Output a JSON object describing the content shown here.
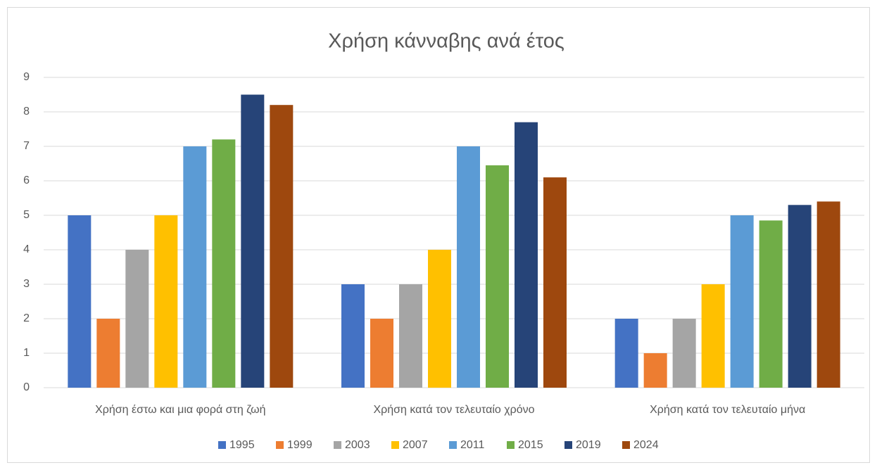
{
  "chart_data": {
    "type": "bar",
    "title": "Χρήση κάνναβης ανά έτος",
    "categories": [
      "Χρήση έστω και μια φορά στη ζωή",
      "Χρήση κατά τον τελευταίο χρόνο",
      "Χρήση κατά τον τελευταίο μήνα"
    ],
    "series": [
      {
        "name": "1995",
        "color": "#4472c4",
        "values": [
          5,
          3,
          2
        ]
      },
      {
        "name": "1999",
        "color": "#ed7d31",
        "values": [
          2,
          2,
          1
        ]
      },
      {
        "name": "2003",
        "color": "#a5a5a5",
        "values": [
          4,
          3,
          2
        ]
      },
      {
        "name": "2007",
        "color": "#ffc000",
        "values": [
          5,
          4,
          3
        ]
      },
      {
        "name": "2011",
        "color": "#5b9bd5",
        "values": [
          7,
          7,
          5
        ]
      },
      {
        "name": "2015",
        "color": "#70ad47",
        "values": [
          7.2,
          6.45,
          4.85
        ]
      },
      {
        "name": "2019",
        "color": "#264478",
        "values": [
          8.5,
          7.7,
          5.3
        ]
      },
      {
        "name": "2024",
        "color": "#9e480e",
        "values": [
          8.2,
          6.1,
          5.4
        ]
      }
    ],
    "ylim": [
      0,
      9
    ],
    "yticks": [
      0,
      1,
      2,
      3,
      4,
      5,
      6,
      7,
      8,
      9
    ],
    "grid": true,
    "legend": "bottom"
  }
}
